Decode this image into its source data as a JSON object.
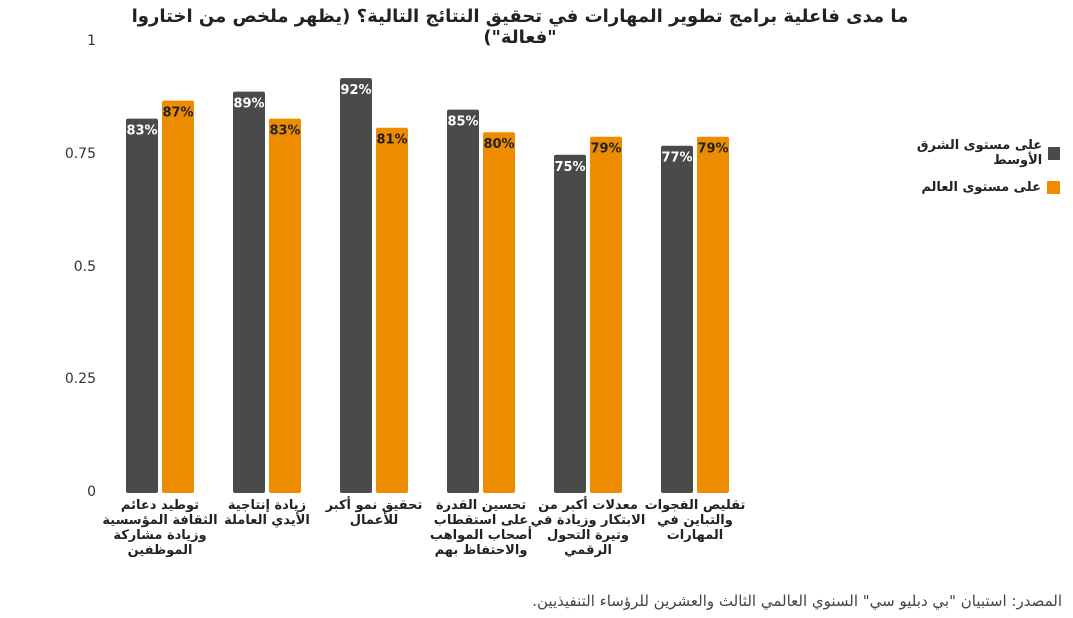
{
  "title": "ما مدى فاعلية برامج تطوير المهارات في تحقيق النتائج التالية؟ (يظهر ملخص من اختاروا \"فعالة\")",
  "source": "المصدر: استبيان \"بي دبليو سي\" السنوي العالمي الثالث والعشرين للرؤساء التنفيذيين.",
  "colors": {
    "middle_east": "#4a4a4a",
    "global": "#ee8c00"
  },
  "chart_data": {
    "type": "bar",
    "categories": [
      "توطيد دعائم الثقافة المؤسسية وزيادة مشاركة الموظفين",
      "زيادة إنتاجية الأيدي العاملة",
      "تحقيق نمو أكبر للأعمال",
      "تحسين القدرة على استقطاب أصحاب المواهب والاحتفاظ بهم",
      "معدلات أكبر من الابتكار وزيادة في وتيرة التحول الرقمي",
      "تقليص الفجوات والتباين في المهارات"
    ],
    "series": [
      {
        "name": "على مستوى الشرق الأوسط",
        "values": [
          0.83,
          0.89,
          0.92,
          0.85,
          0.75,
          0.77
        ],
        "labels": [
          "83%",
          "89%",
          "92%",
          "85%",
          "75%",
          "77%"
        ]
      },
      {
        "name": "على مستوى العالم",
        "values": [
          0.87,
          0.83,
          0.81,
          0.8,
          0.79,
          0.79
        ],
        "labels": [
          "87%",
          "83%",
          "81%",
          "80%",
          "79%",
          "79%"
        ]
      }
    ],
    "yticks": [
      "0",
      "0.25",
      "0.5",
      "0.75",
      "1"
    ],
    "ylim": [
      0,
      1
    ],
    "grid": false,
    "legend": "right"
  }
}
